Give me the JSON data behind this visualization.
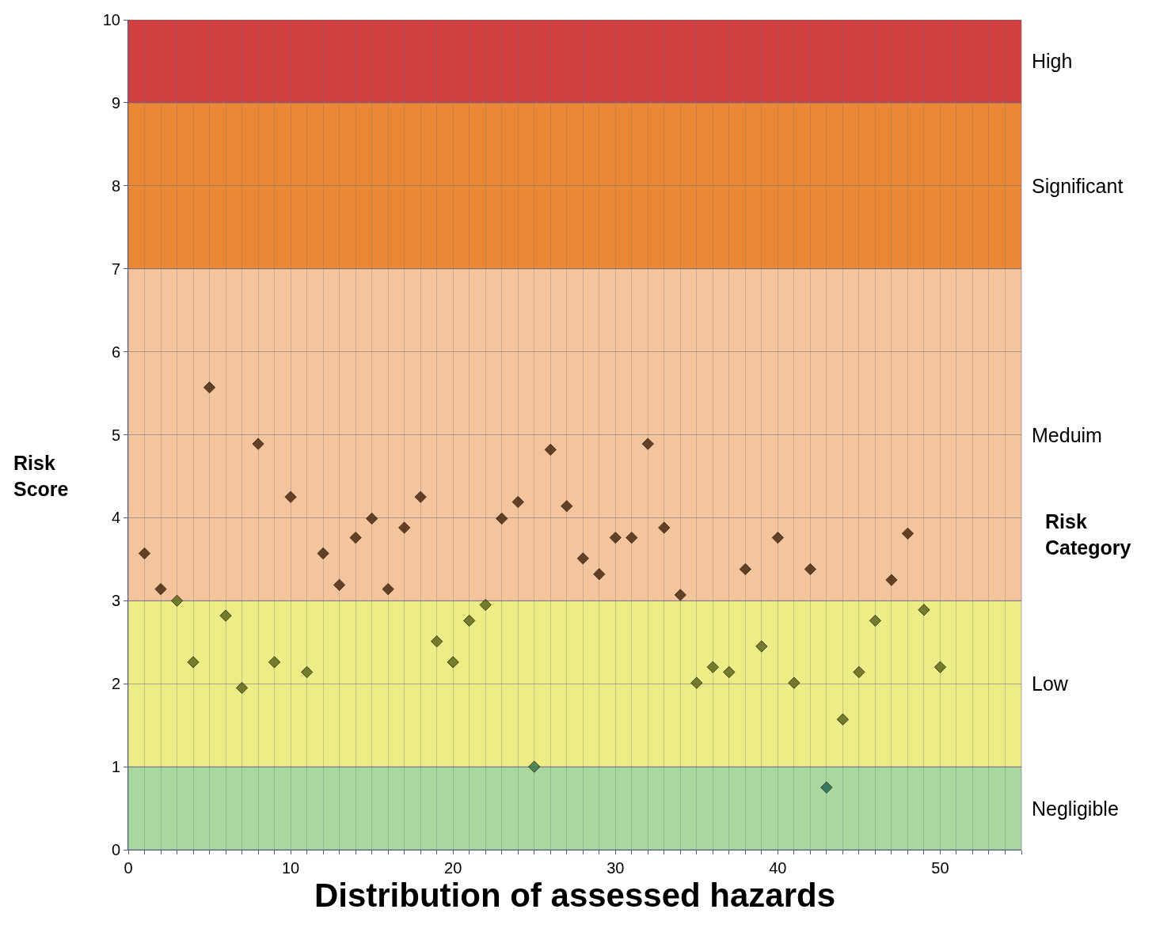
{
  "chart_data": {
    "type": "scatter",
    "xlabel": "Distribution of assessed hazards",
    "ylabel": "Risk Score",
    "y2label": "Risk Category",
    "x": [
      1,
      2,
      3,
      4,
      5,
      6,
      7,
      8,
      9,
      10,
      11,
      12,
      13,
      14,
      15,
      16,
      17,
      18,
      19,
      20,
      21,
      22,
      23,
      24,
      25,
      26,
      27,
      28,
      29,
      30,
      31,
      32,
      33,
      34,
      35,
      36,
      37,
      38,
      39,
      40,
      41,
      42,
      43,
      44,
      45,
      46,
      47,
      48,
      49,
      50
    ],
    "values": [
      3.57,
      3.14,
      3.0,
      2.26,
      5.57,
      2.82,
      1.95,
      4.89,
      2.26,
      4.25,
      2.14,
      3.57,
      3.19,
      3.76,
      3.99,
      3.14,
      3.88,
      4.25,
      2.51,
      2.26,
      2.76,
      2.95,
      3.99,
      4.19,
      1.0,
      4.82,
      4.14,
      3.51,
      3.32,
      3.76,
      3.76,
      4.89,
      3.88,
      3.07,
      2.01,
      2.2,
      2.14,
      3.38,
      2.45,
      3.76,
      2.01,
      3.38,
      0.75,
      1.57,
      2.14,
      2.76,
      3.25,
      3.81,
      2.89,
      2.2
    ],
    "colors": [
      "#4a2a12",
      "#4a2a12",
      "#5f6a1c",
      "#5f6a1c",
      "#4a2a12",
      "#5f6a1c",
      "#5f6a1c",
      "#4a2a12",
      "#5f6a1c",
      "#4a2a12",
      "#5f6a1c",
      "#4a2a12",
      "#4a2a12",
      "#4a2a12",
      "#4a2a12",
      "#4a2a12",
      "#4a2a12",
      "#4a2a12",
      "#5f6a1c",
      "#5f6a1c",
      "#5f6a1c",
      "#5f6a1c",
      "#4a2a12",
      "#4a2a12",
      "#3a7a4a",
      "#4a2a12",
      "#4a2a12",
      "#4a2a12",
      "#4a2a12",
      "#4a2a12",
      "#4a2a12",
      "#4a2a12",
      "#4a2a12",
      "#4a2a12",
      "#5f6a1c",
      "#5f6a1c",
      "#5f6a1c",
      "#4a2a12",
      "#5f6a1c",
      "#4a2a12",
      "#5f6a1c",
      "#4a2a12",
      "#1f6e5a",
      "#5f6a1c",
      "#5f6a1c",
      "#5f6a1c",
      "#4a2a12",
      "#4a2a12",
      "#5f6a1c",
      "#5f6a1c"
    ],
    "marker": "diamond",
    "xlim": [
      0,
      55
    ],
    "ylim": [
      0,
      10
    ],
    "xticks": [
      0,
      {
        "value": 1,
        "label": null
      },
      {
        "value": 2,
        "label": null
      },
      {
        "value": 3,
        "label": null
      },
      {
        "value": 4,
        "label": null
      },
      {
        "value": 5,
        "label": null
      },
      {
        "value": 6,
        "label": null
      },
      {
        "value": 7,
        "label": null
      },
      {
        "value": 8,
        "label": null
      },
      {
        "value": 9,
        "label": null
      },
      10,
      {
        "value": 11,
        "label": null
      },
      {
        "value": 12,
        "label": null
      },
      {
        "value": 13,
        "label": null
      },
      {
        "value": 14,
        "label": null
      },
      {
        "value": 15,
        "label": null
      },
      {
        "value": 16,
        "label": null
      },
      {
        "value": 17,
        "label": null
      },
      {
        "value": 18,
        "label": null
      },
      {
        "value": 19,
        "label": null
      },
      20,
      {
        "value": 21,
        "label": null
      },
      {
        "value": 22,
        "label": null
      },
      {
        "value": 23,
        "label": null
      },
      {
        "value": 24,
        "label": null
      },
      {
        "value": 25,
        "label": null
      },
      {
        "value": 26,
        "label": null
      },
      {
        "value": 27,
        "label": null
      },
      {
        "value": 28,
        "label": null
      },
      {
        "value": 29,
        "label": null
      },
      30,
      {
        "value": 31,
        "label": null
      },
      {
        "value": 32,
        "label": null
      },
      {
        "value": 33,
        "label": null
      },
      {
        "value": 34,
        "label": null
      },
      {
        "value": 35,
        "label": null
      },
      {
        "value": 36,
        "label": null
      },
      {
        "value": 37,
        "label": null
      },
      {
        "value": 38,
        "label": null
      },
      {
        "value": 39,
        "label": null
      },
      40,
      {
        "value": 41,
        "label": null
      },
      {
        "value": 42,
        "label": null
      },
      {
        "value": 43,
        "label": null
      },
      {
        "value": 44,
        "label": null
      },
      {
        "value": 45,
        "label": null
      },
      {
        "value": 46,
        "label": null
      },
      {
        "value": 47,
        "label": null
      },
      {
        "value": 48,
        "label": null
      },
      {
        "value": 49,
        "label": null
      },
      50,
      {
        "value": 51,
        "label": null
      },
      {
        "value": 52,
        "label": null
      },
      {
        "value": 53,
        "label": null
      },
      {
        "value": 54,
        "label": null
      },
      {
        "value": 55,
        "label": null
      }
    ],
    "yticks": [
      0,
      1,
      2,
      3,
      4,
      5,
      6,
      7,
      8,
      9,
      10
    ],
    "grid": true,
    "legend": false,
    "bands": [
      {
        "axis": "y",
        "from": 0,
        "to": 1,
        "label": "Negligible",
        "color": "#a8d8a0"
      },
      {
        "axis": "y",
        "from": 1,
        "to": 3,
        "label": "Low",
        "color": "#eded88"
      },
      {
        "axis": "y",
        "from": 3,
        "to": 7,
        "label": "Meduim",
        "color": "#f4c49c"
      },
      {
        "axis": "y",
        "from": 7,
        "to": 9,
        "label": "Significant",
        "color": "#ea8834"
      },
      {
        "axis": "y",
        "from": 9,
        "to": 10,
        "label": "High",
        "color": "#d04040"
      }
    ]
  }
}
